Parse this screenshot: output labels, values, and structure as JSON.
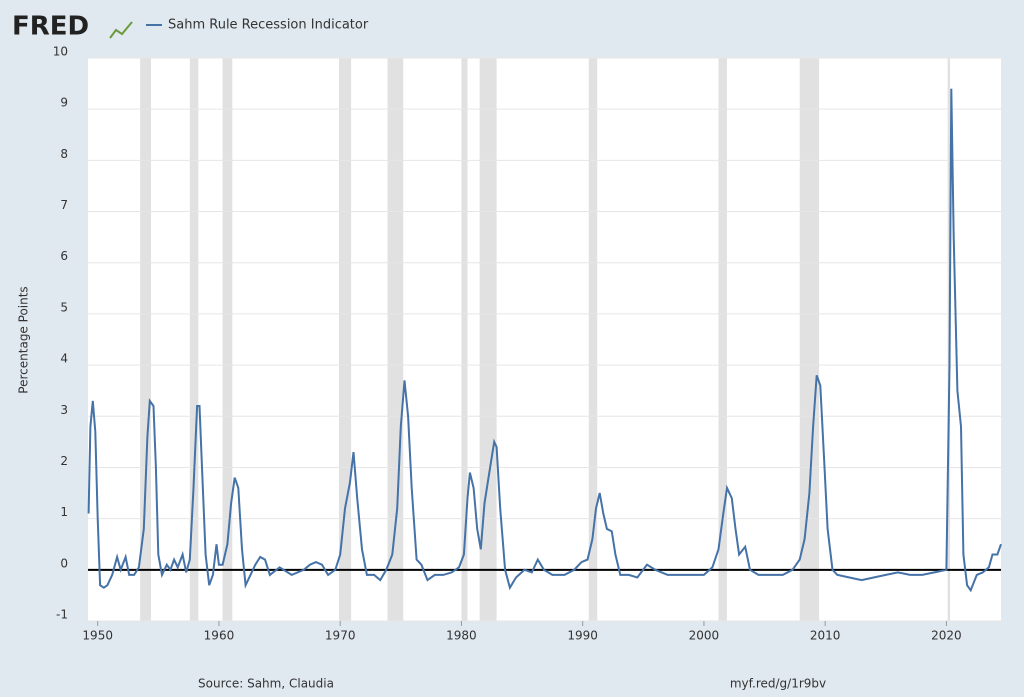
{
  "chart_data": {
    "type": "line",
    "logo": "FRED",
    "ylabel": "Percentage Points",
    "source": "Source: Sahm, Claudia",
    "link": "myf.red/g/1r9bv",
    "xlim": [
      1949.2,
      2024.5
    ],
    "ylim": [
      -1,
      10
    ],
    "xticks": [
      1950,
      1960,
      1970,
      1980,
      1990,
      2000,
      2010,
      2020
    ],
    "yticks": [
      -1,
      0,
      1,
      2,
      3,
      4,
      5,
      6,
      7,
      8,
      9,
      10
    ],
    "grid": true,
    "zero_line": true,
    "recessions": [
      [
        1953.5,
        1954.4
      ],
      [
        1957.6,
        1958.3
      ],
      [
        1960.3,
        1961.1
      ],
      [
        1969.9,
        1970.9
      ],
      [
        1973.9,
        1975.2
      ],
      [
        1980.0,
        1980.5
      ],
      [
        1981.5,
        1982.9
      ],
      [
        1990.5,
        1991.2
      ],
      [
        2001.2,
        2001.9
      ],
      [
        2007.9,
        2009.5
      ],
      [
        2020.1,
        2020.3
      ]
    ],
    "x": [
      1949.25,
      1949.4,
      1949.6,
      1949.8,
      1950.0,
      1950.2,
      1950.5,
      1950.8,
      1951.2,
      1951.6,
      1951.9,
      1952.3,
      1952.6,
      1953.0,
      1953.4,
      1953.8,
      1954.1,
      1954.3,
      1954.6,
      1954.8,
      1955.0,
      1955.3,
      1955.7,
      1956.0,
      1956.3,
      1956.6,
      1957.0,
      1957.3,
      1957.6,
      1957.9,
      1958.2,
      1958.4,
      1958.6,
      1958.9,
      1959.2,
      1959.5,
      1959.8,
      1960.0,
      1960.3,
      1960.7,
      1961.0,
      1961.3,
      1961.6,
      1961.9,
      1962.2,
      1962.6,
      1963.0,
      1963.4,
      1963.8,
      1964.2,
      1965,
      1966,
      1967,
      1967.5,
      1968,
      1968.5,
      1969,
      1969.6,
      1970.0,
      1970.4,
      1970.8,
      1971.1,
      1971.4,
      1971.8,
      1972.2,
      1972.8,
      1973.3,
      1973.8,
      1974.3,
      1974.7,
      1975.0,
      1975.3,
      1975.6,
      1975.9,
      1976.3,
      1976.7,
      1977.2,
      1977.8,
      1978.5,
      1979.2,
      1979.8,
      1980.2,
      1980.5,
      1980.7,
      1981.0,
      1981.3,
      1981.6,
      1981.9,
      1982.3,
      1982.7,
      1982.9,
      1983.2,
      1983.6,
      1984.0,
      1984.5,
      1985.2,
      1985.8,
      1986.3,
      1986.8,
      1987.5,
      1988.5,
      1989.3,
      1989.9,
      1990.4,
      1990.8,
      1991.1,
      1991.4,
      1991.7,
      1992.0,
      1992.4,
      1992.7,
      1993.1,
      1993.8,
      1994.5,
      1995.3,
      1996.0,
      1997.0,
      1998.0,
      1999.0,
      2000.0,
      2000.7,
      2001.2,
      2001.6,
      2001.9,
      2002.3,
      2002.6,
      2002.9,
      2003.4,
      2003.8,
      2004.5,
      2005.5,
      2006.5,
      2007.3,
      2007.9,
      2008.3,
      2008.7,
      2009.0,
      2009.3,
      2009.6,
      2009.9,
      2010.2,
      2010.6,
      2011.0,
      2012,
      2013,
      2014,
      2015,
      2016,
      2017,
      2018,
      2019,
      2020.0,
      2020.25,
      2020.4,
      2020.6,
      2020.9,
      2021.2,
      2021.4,
      2021.7,
      2022.0,
      2022.5,
      2023.0,
      2023.5,
      2023.8,
      2024.2,
      2024.5
    ],
    "series": [
      {
        "name": "Sahm Rule Recession Indicator",
        "color": "#4572a7",
        "values": [
          1.1,
          2.8,
          3.3,
          2.7,
          1.0,
          -0.3,
          -0.35,
          -0.3,
          -0.1,
          0.25,
          0.0,
          0.25,
          -0.1,
          -0.1,
          0.05,
          0.8,
          2.6,
          3.3,
          3.2,
          2.0,
          0.3,
          -0.1,
          0.1,
          0.0,
          0.2,
          0.05,
          0.3,
          -0.05,
          0.2,
          1.6,
          3.2,
          3.2,
          2.0,
          0.3,
          -0.3,
          -0.1,
          0.5,
          0.1,
          0.1,
          0.5,
          1.3,
          1.8,
          1.6,
          0.4,
          -0.3,
          -0.1,
          0.1,
          0.25,
          0.2,
          -0.1,
          0.05,
          -0.1,
          0.0,
          0.1,
          0.15,
          0.1,
          -0.1,
          0.0,
          0.3,
          1.2,
          1.7,
          2.3,
          1.4,
          0.4,
          -0.1,
          -0.1,
          -0.2,
          0.0,
          0.3,
          1.2,
          2.8,
          3.7,
          3.0,
          1.6,
          0.2,
          0.1,
          -0.2,
          -0.1,
          -0.1,
          -0.05,
          0.05,
          0.3,
          1.4,
          1.9,
          1.6,
          0.8,
          0.4,
          1.3,
          1.9,
          2.5,
          2.4,
          1.2,
          0.0,
          -0.35,
          -0.15,
          0.0,
          -0.05,
          0.2,
          0.0,
          -0.1,
          -0.1,
          0.0,
          0.15,
          0.2,
          0.6,
          1.2,
          1.5,
          1.1,
          0.8,
          0.75,
          0.3,
          -0.1,
          -0.1,
          -0.15,
          0.1,
          0.0,
          -0.1,
          -0.1,
          -0.1,
          -0.1,
          0.05,
          0.4,
          1.1,
          1.6,
          1.4,
          0.8,
          0.3,
          0.45,
          0.0,
          -0.1,
          -0.1,
          -0.1,
          0.0,
          0.2,
          0.6,
          1.5,
          2.8,
          3.8,
          3.6,
          2.2,
          0.8,
          0.0,
          -0.1,
          -0.15,
          -0.2,
          -0.15,
          -0.1,
          -0.05,
          -0.1,
          -0.1,
          -0.05,
          0.0,
          4.0,
          9.4,
          6.5,
          3.5,
          2.8,
          0.3,
          -0.3,
          -0.4,
          -0.1,
          -0.05,
          0.05,
          0.3,
          0.3,
          0.5
        ]
      }
    ]
  }
}
